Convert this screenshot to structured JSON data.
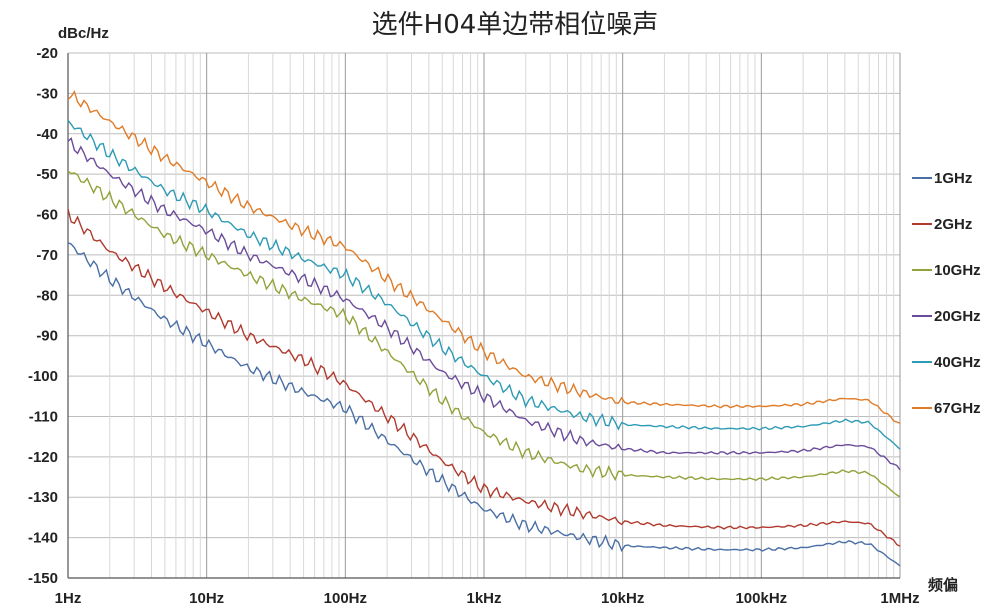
{
  "chart_data": {
    "type": "line",
    "title": "选件H04单边带相位噪声",
    "ylabel": "dBc/Hz",
    "xlabel": "频偏",
    "x_scale": "log",
    "xlim": [
      1,
      1000000
    ],
    "ylim": [
      -150,
      -20
    ],
    "y_ticks": [
      -20,
      -30,
      -40,
      -50,
      -60,
      -70,
      -80,
      -90,
      -100,
      -110,
      -120,
      -130,
      -140,
      -150
    ],
    "x_ticks": [
      {
        "value": 1,
        "label": "1Hz"
      },
      {
        "value": 10,
        "label": "10Hz"
      },
      {
        "value": 100,
        "label": "100Hz"
      },
      {
        "value": 1000,
        "label": "1kHz"
      },
      {
        "value": 10000,
        "label": "10kHz"
      },
      {
        "value": 100000,
        "label": "100kHz"
      },
      {
        "value": 1000000,
        "label": "1MHz"
      }
    ],
    "grid": true,
    "legend_position": "right",
    "x": [
      1,
      2,
      5,
      10,
      20,
      50,
      100,
      200,
      500,
      1000,
      2000,
      5000,
      10000,
      20000,
      50000,
      100000,
      200000,
      400000,
      600000,
      1000000
    ],
    "series": [
      {
        "name": "1GHz",
        "color": "#4a6fa5",
        "values": [
          -67,
          -76,
          -86,
          -92,
          -98,
          -104,
          -108,
          -116,
          -126,
          -133,
          -137,
          -140,
          -142,
          -142.5,
          -143,
          -143,
          -142.5,
          -141,
          -141.5,
          -147
        ]
      },
      {
        "name": "2GHz",
        "color": "#b03a2e",
        "values": [
          -60,
          -69,
          -78,
          -84,
          -90,
          -96,
          -102,
          -110,
          -121,
          -128,
          -131,
          -134,
          -136,
          -137,
          -137.5,
          -137.5,
          -137,
          -136,
          -136.5,
          -142
        ]
      },
      {
        "name": "10GHz",
        "color": "#8fa33a",
        "values": [
          -49,
          -56,
          -65,
          -70,
          -75,
          -81,
          -85,
          -94,
          -106,
          -114,
          -119,
          -123,
          -124.5,
          -125,
          -125.5,
          -125.5,
          -125,
          -123.5,
          -124,
          -130
        ]
      },
      {
        "name": "20GHz",
        "color": "#6b4c9a",
        "values": [
          -42,
          -50,
          -59,
          -64,
          -70,
          -76,
          -81,
          -88,
          -99,
          -105,
          -111,
          -116,
          -118,
          -119,
          -119,
          -119,
          -118.5,
          -117,
          -117.5,
          -123
        ]
      },
      {
        "name": "40GHz",
        "color": "#2e9bb5",
        "values": [
          -37,
          -45,
          -54,
          -59,
          -65,
          -71,
          -75,
          -82,
          -93,
          -100,
          -106,
          -110,
          -112,
          -112.5,
          -113,
          -113,
          -112.5,
          -111,
          -111.5,
          -118
        ]
      },
      {
        "name": "67GHz",
        "color": "#e07b27",
        "values": [
          -30,
          -37,
          -46,
          -52,
          -58,
          -64,
          -68,
          -76,
          -86,
          -94,
          -100,
          -104,
          -106.5,
          -107,
          -107.5,
          -107.5,
          -107,
          -105.5,
          -106,
          -112
        ]
      }
    ]
  }
}
